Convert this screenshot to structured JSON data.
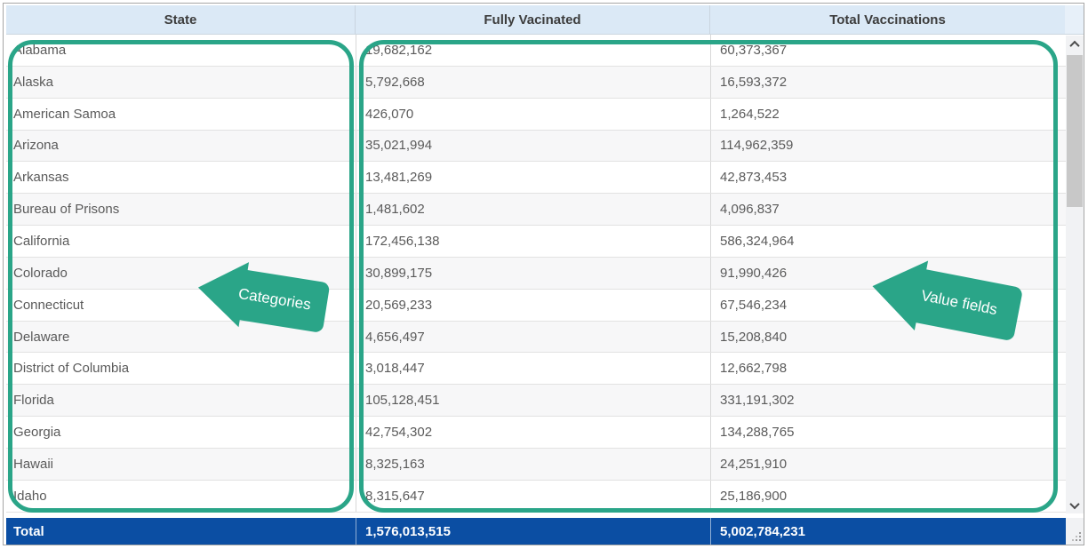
{
  "colors": {
    "teal_annotation": "#2aa588",
    "header_bg": "#dbe9f6",
    "total_row_bg": "#0b4ea3",
    "cell_text": "#5a5a5a",
    "alt_row_bg": "#f7f7f8"
  },
  "table": {
    "columns": [
      "State",
      "Fully Vacinated",
      "Total Vaccinations"
    ],
    "rows": [
      {
        "state": "Alabama",
        "fully_vaccinated": "19,682,162",
        "total_vaccinations": "60,373,367"
      },
      {
        "state": "Alaska",
        "fully_vaccinated": "5,792,668",
        "total_vaccinations": "16,593,372"
      },
      {
        "state": "American Samoa",
        "fully_vaccinated": "426,070",
        "total_vaccinations": "1,264,522"
      },
      {
        "state": "Arizona",
        "fully_vaccinated": "35,021,994",
        "total_vaccinations": "114,962,359"
      },
      {
        "state": "Arkansas",
        "fully_vaccinated": "13,481,269",
        "total_vaccinations": "42,873,453"
      },
      {
        "state": "Bureau of Prisons",
        "fully_vaccinated": "1,481,602",
        "total_vaccinations": "4,096,837"
      },
      {
        "state": "California",
        "fully_vaccinated": "172,456,138",
        "total_vaccinations": "586,324,964"
      },
      {
        "state": "Colorado",
        "fully_vaccinated": "30,899,175",
        "total_vaccinations": "91,990,426"
      },
      {
        "state": "Connecticut",
        "fully_vaccinated": "20,569,233",
        "total_vaccinations": "67,546,234"
      },
      {
        "state": "Delaware",
        "fully_vaccinated": "4,656,497",
        "total_vaccinations": "15,208,840"
      },
      {
        "state": "District of Columbia",
        "fully_vaccinated": "3,018,447",
        "total_vaccinations": "12,662,798"
      },
      {
        "state": "Florida",
        "fully_vaccinated": "105,128,451",
        "total_vaccinations": "331,191,302"
      },
      {
        "state": "Georgia",
        "fully_vaccinated": "42,754,302",
        "total_vaccinations": "134,288,765"
      },
      {
        "state": "Hawaii",
        "fully_vaccinated": "8,325,163",
        "total_vaccinations": "24,251,910"
      },
      {
        "state": "Idaho",
        "fully_vaccinated": "8,315,647",
        "total_vaccinations": "25,186,900"
      }
    ],
    "total_row": {
      "label": "Total",
      "fully_vaccinated": "1,576,013,515",
      "total_vaccinations": "5,002,784,231"
    }
  },
  "annotations": {
    "categories_label": "Categories",
    "value_fields_label": "Value fields"
  }
}
